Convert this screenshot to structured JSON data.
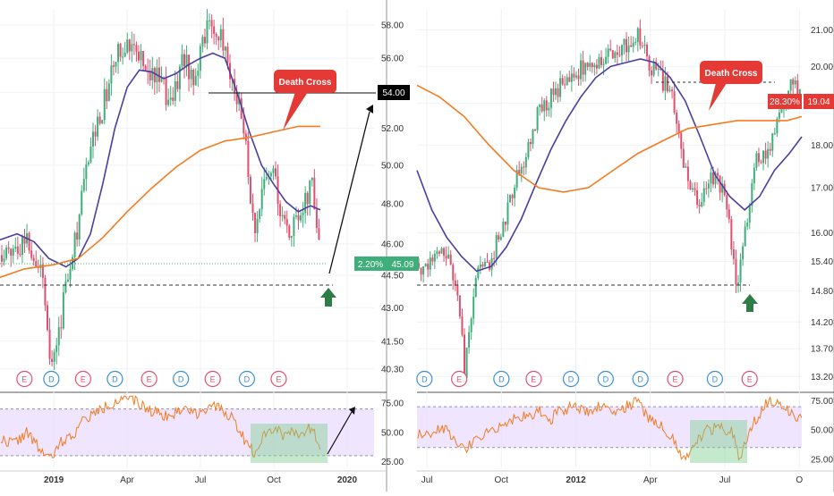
{
  "chart_data": [
    {
      "type": "candlestick",
      "x_tick_labels": [
        "2019",
        "Apr",
        "Jul",
        "Oct",
        "2020"
      ],
      "x_tick_months": [
        0,
        3,
        6,
        9,
        12
      ],
      "x_range_months": [
        -2.2,
        13.1
      ],
      "y_scale": "log",
      "y_range": [
        39.5,
        59.0
      ],
      "y_tick_labels": [
        "58.00",
        "56.00",
        "54.00",
        "52.00",
        "50.00",
        "48.00",
        "46.00",
        "44.50",
        "43.00",
        "41.50",
        "40.30"
      ],
      "price_path": [
        [
          -2.2,
          45.4
        ],
        [
          -1.6,
          45.9
        ],
        [
          -1.1,
          46.3
        ],
        [
          -0.8,
          45.6
        ],
        [
          -0.4,
          44.2
        ],
        [
          -0.1,
          40.3
        ],
        [
          0.3,
          42.6
        ],
        [
          0.6,
          44.9
        ],
        [
          1.0,
          47.0
        ],
        [
          1.5,
          51.0
        ],
        [
          2.0,
          53.2
        ],
        [
          2.5,
          55.8
        ],
        [
          2.9,
          57.0
        ],
        [
          3.3,
          57.2
        ],
        [
          3.7,
          55.5
        ],
        [
          4.2,
          54.8
        ],
        [
          4.8,
          53.5
        ],
        [
          5.3,
          56.1
        ],
        [
          5.7,
          54.9
        ],
        [
          6.2,
          57.6
        ],
        [
          6.6,
          57.9
        ],
        [
          7.1,
          56.0
        ],
        [
          7.4,
          54.2
        ],
        [
          7.8,
          51.6
        ],
        [
          8.2,
          46.2
        ],
        [
          8.6,
          48.9
        ],
        [
          9.0,
          49.6
        ],
        [
          9.3,
          47.5
        ],
        [
          9.7,
          46.4
        ],
        [
          10.1,
          47.8
        ],
        [
          10.6,
          48.9
        ],
        [
          10.9,
          45.1
        ]
      ],
      "series": [
        {
          "name": "",
          "color": "#4b3ea3",
          "points": [
            [
              -2.2,
              46.2
            ],
            [
              -1.5,
              46.5
            ],
            [
              -0.8,
              46.1
            ],
            [
              -0.2,
              45.3
            ],
            [
              0.5,
              44.9
            ],
            [
              1.0,
              45.3
            ],
            [
              1.5,
              46.5
            ],
            [
              2.0,
              49.0
            ],
            [
              2.5,
              52.0
            ],
            [
              3.0,
              54.3
            ],
            [
              3.5,
              55.3
            ],
            [
              4.0,
              55.2
            ],
            [
              4.5,
              54.8
            ],
            [
              5.0,
              55.1
            ],
            [
              5.5,
              55.6
            ],
            [
              6.0,
              56.0
            ],
            [
              6.5,
              56.3
            ],
            [
              7.0,
              56.0
            ],
            [
              7.5,
              54.0
            ],
            [
              8.0,
              51.8
            ],
            [
              8.5,
              50.0
            ],
            [
              9.0,
              49.0
            ],
            [
              9.5,
              48.1
            ],
            [
              10.0,
              47.6
            ],
            [
              10.5,
              47.9
            ],
            [
              10.9,
              47.7
            ]
          ]
        },
        {
          "name": "",
          "color": "#f47b20",
          "points": [
            [
              -2.2,
              44.4
            ],
            [
              -1.2,
              44.8
            ],
            [
              0.0,
              45.0
            ],
            [
              1.0,
              45.3
            ],
            [
              2.0,
              46.3
            ],
            [
              3.0,
              47.6
            ],
            [
              4.0,
              48.8
            ],
            [
              5.0,
              49.9
            ],
            [
              6.0,
              50.8
            ],
            [
              7.0,
              51.3
            ],
            [
              8.0,
              51.5
            ],
            [
              9.0,
              51.8
            ],
            [
              10.0,
              52.1
            ],
            [
              10.9,
              52.1
            ]
          ]
        }
      ],
      "rsi": {
        "y_tick_labels": [
          "75.00",
          "50.00",
          "25.00"
        ],
        "y_range": [
          20,
          82
        ],
        "upper_band": 70,
        "lower_band": 30,
        "path": [
          [
            -2.2,
            44
          ],
          [
            -1.6,
            41
          ],
          [
            -1.1,
            50
          ],
          [
            -0.6,
            36
          ],
          [
            -0.1,
            27
          ],
          [
            0.3,
            42
          ],
          [
            0.7,
            46
          ],
          [
            1.2,
            60
          ],
          [
            1.8,
            68
          ],
          [
            2.3,
            74
          ],
          [
            2.8,
            80
          ],
          [
            3.3,
            77
          ],
          [
            3.8,
            70
          ],
          [
            4.3,
            67
          ],
          [
            4.8,
            63
          ],
          [
            5.3,
            72
          ],
          [
            5.8,
            66
          ],
          [
            6.3,
            72
          ],
          [
            6.8,
            70
          ],
          [
            7.3,
            63
          ],
          [
            7.8,
            44
          ],
          [
            8.2,
            32
          ],
          [
            8.6,
            50
          ],
          [
            9.0,
            54
          ],
          [
            9.4,
            48
          ],
          [
            9.8,
            52
          ],
          [
            10.2,
            48
          ],
          [
            10.6,
            56
          ],
          [
            10.9,
            34
          ]
        ]
      },
      "annotations": {
        "death_cross": "Death Cross",
        "target_price": "54.00",
        "change_pct": "2.20%",
        "last_price": "45.09"
      },
      "events": [
        "E",
        "D",
        "E",
        "D",
        "E",
        "D",
        "E",
        "D",
        "E"
      ],
      "event_months": [
        -1.2,
        -0.1,
        1.2,
        2.5,
        3.9,
        5.2,
        6.5,
        7.9,
        9.2
      ],
      "event_colors": {
        "E": "#e0506e",
        "D": "#3a8fd6"
      }
    },
    {
      "type": "candlestick",
      "x_tick_labels": [
        "Jul",
        "Oct",
        "2012",
        "Apr",
        "Jul",
        "O"
      ],
      "x_tick_months": [
        0,
        3,
        6,
        9,
        12,
        15
      ],
      "x_range_months": [
        -0.4,
        15.1
      ],
      "y_scale": "log",
      "y_range": [
        13.0,
        21.6
      ],
      "y_tick_labels": [
        "21.00",
        "20.00",
        "19.04",
        "18.00",
        "17.00",
        "16.00",
        "15.40",
        "14.80",
        "14.20",
        "13.70",
        "13.20"
      ],
      "price_path": [
        [
          -0.4,
          15.4
        ],
        [
          0.0,
          15.2
        ],
        [
          0.5,
          15.6
        ],
        [
          1.0,
          15.3
        ],
        [
          1.3,
          14.6
        ],
        [
          1.5,
          13.3
        ],
        [
          2.0,
          15.2
        ],
        [
          2.5,
          15.4
        ],
        [
          3.0,
          16.0
        ],
        [
          3.5,
          17.0
        ],
        [
          4.0,
          17.8
        ],
        [
          4.5,
          18.8
        ],
        [
          5.0,
          19.2
        ],
        [
          5.5,
          19.6
        ],
        [
          6.0,
          19.9
        ],
        [
          6.5,
          20.0
        ],
        [
          7.0,
          20.2
        ],
        [
          7.5,
          20.4
        ],
        [
          8.0,
          20.6
        ],
        [
          8.5,
          21.0
        ],
        [
          9.0,
          20.0
        ],
        [
          9.5,
          19.6
        ],
        [
          10.0,
          19.0
        ],
        [
          10.5,
          17.0
        ],
        [
          11.0,
          16.6
        ],
        [
          11.5,
          17.3
        ],
        [
          12.0,
          16.8
        ],
        [
          12.5,
          14.9
        ],
        [
          12.9,
          16.2
        ],
        [
          13.3,
          17.7
        ],
        [
          13.8,
          17.9
        ],
        [
          14.2,
          18.6
        ],
        [
          14.7,
          19.7
        ],
        [
          15.1,
          19.0
        ]
      ],
      "series": [
        {
          "name": "",
          "color": "#4b3ea3",
          "points": [
            [
              -0.4,
              17.4
            ],
            [
              0.2,
              16.5
            ],
            [
              0.8,
              15.9
            ],
            [
              1.4,
              15.5
            ],
            [
              2.0,
              15.2
            ],
            [
              2.6,
              15.3
            ],
            [
              3.2,
              15.7
            ],
            [
              3.8,
              16.3
            ],
            [
              4.4,
              17.1
            ],
            [
              5.0,
              17.9
            ],
            [
              5.6,
              18.6
            ],
            [
              6.2,
              19.2
            ],
            [
              6.8,
              19.7
            ],
            [
              7.4,
              20.0
            ],
            [
              8.0,
              20.1
            ],
            [
              8.6,
              20.2
            ],
            [
              9.2,
              20.1
            ],
            [
              9.8,
              19.7
            ],
            [
              10.4,
              19.1
            ],
            [
              11.0,
              18.2
            ],
            [
              11.6,
              17.3
            ],
            [
              12.2,
              16.8
            ],
            [
              12.8,
              16.5
            ],
            [
              13.4,
              16.8
            ],
            [
              14.0,
              17.4
            ],
            [
              14.6,
              17.8
            ],
            [
              15.1,
              18.2
            ]
          ]
        },
        {
          "name": "",
          "color": "#f47b20",
          "points": [
            [
              -0.4,
              19.5
            ],
            [
              0.5,
              19.2
            ],
            [
              1.5,
              18.7
            ],
            [
              2.5,
              18.0
            ],
            [
              3.5,
              17.4
            ],
            [
              4.5,
              17.0
            ],
            [
              5.5,
              16.9
            ],
            [
              6.5,
              17.0
            ],
            [
              7.5,
              17.4
            ],
            [
              8.5,
              17.8
            ],
            [
              9.5,
              18.1
            ],
            [
              10.5,
              18.4
            ],
            [
              11.5,
              18.5
            ],
            [
              12.5,
              18.6
            ],
            [
              13.5,
              18.6
            ],
            [
              14.5,
              18.6
            ],
            [
              15.1,
              18.7
            ]
          ]
        }
      ],
      "rsi": {
        "y_tick_labels": [
          "75.00",
          "50.00",
          "25.00"
        ],
        "y_range": [
          18,
          80
        ],
        "upper_band": 70,
        "lower_band": 35,
        "path": [
          [
            -0.4,
            45
          ],
          [
            0.2,
            48
          ],
          [
            0.7,
            52
          ],
          [
            1.2,
            40
          ],
          [
            1.5,
            32
          ],
          [
            2.0,
            45
          ],
          [
            2.5,
            48
          ],
          [
            3.0,
            55
          ],
          [
            3.5,
            60
          ],
          [
            4.0,
            62
          ],
          [
            4.5,
            66
          ],
          [
            5.0,
            60
          ],
          [
            5.5,
            68
          ],
          [
            6.0,
            70
          ],
          [
            6.5,
            66
          ],
          [
            7.0,
            72
          ],
          [
            7.5,
            66
          ],
          [
            8.0,
            70
          ],
          [
            8.5,
            74
          ],
          [
            9.0,
            58
          ],
          [
            9.5,
            52
          ],
          [
            10.0,
            40
          ],
          [
            10.3,
            22
          ],
          [
            10.8,
            40
          ],
          [
            11.3,
            50
          ],
          [
            11.8,
            52
          ],
          [
            12.3,
            48
          ],
          [
            12.6,
            26
          ],
          [
            13.0,
            50
          ],
          [
            13.4,
            64
          ],
          [
            13.8,
            76
          ],
          [
            14.3,
            70
          ],
          [
            14.8,
            64
          ],
          [
            15.1,
            58
          ]
        ]
      },
      "annotations": {
        "death_cross": "Death Cross",
        "change_pct": "28.30%",
        "last_price": "19.04"
      },
      "events": [
        "D",
        "E",
        "D",
        "E",
        "D",
        "D",
        "D",
        "E",
        "D",
        "E"
      ],
      "event_months": [
        -0.1,
        1.3,
        3.0,
        4.3,
        5.8,
        7.2,
        8.6,
        10.0,
        11.6,
        13.0
      ],
      "event_colors": {
        "E": "#e0506e",
        "D": "#3a8fd6"
      }
    }
  ]
}
